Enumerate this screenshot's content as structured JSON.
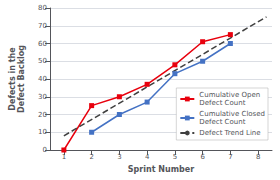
{
  "chart_data": {
    "type": "line",
    "xlabel": "Sprint Number",
    "ylabel": "Defects in the\nDefect Backlog",
    "xlim": [
      0.5,
      8.5
    ],
    "ylim": [
      0,
      80
    ],
    "xticks": [
      1,
      2,
      3,
      4,
      5,
      6,
      7,
      8
    ],
    "yticks": [
      0,
      10,
      20,
      30,
      40,
      50,
      60,
      70,
      80
    ],
    "grid": true,
    "legend": "right",
    "series": [
      {
        "name": "Cumulative Open\nDefect Count",
        "color": "#e8000d",
        "marker": "square",
        "x": [
          1,
          2,
          3,
          4,
          5,
          6,
          7
        ],
        "values": [
          0,
          25,
          30,
          37,
          48,
          61,
          65
        ]
      },
      {
        "name": "Cumulative Closed\nDefect Count",
        "color": "#4472c4",
        "marker": "square",
        "x": [
          2,
          3,
          4,
          5,
          6,
          7
        ],
        "values": [
          10,
          20,
          27,
          43,
          50,
          60
        ]
      },
      {
        "name": "Defect Trend Line",
        "color": "#404040",
        "marker": "none",
        "line_style": "dashed",
        "x": [
          1,
          8.3
        ],
        "values": [
          8,
          75
        ]
      }
    ]
  }
}
